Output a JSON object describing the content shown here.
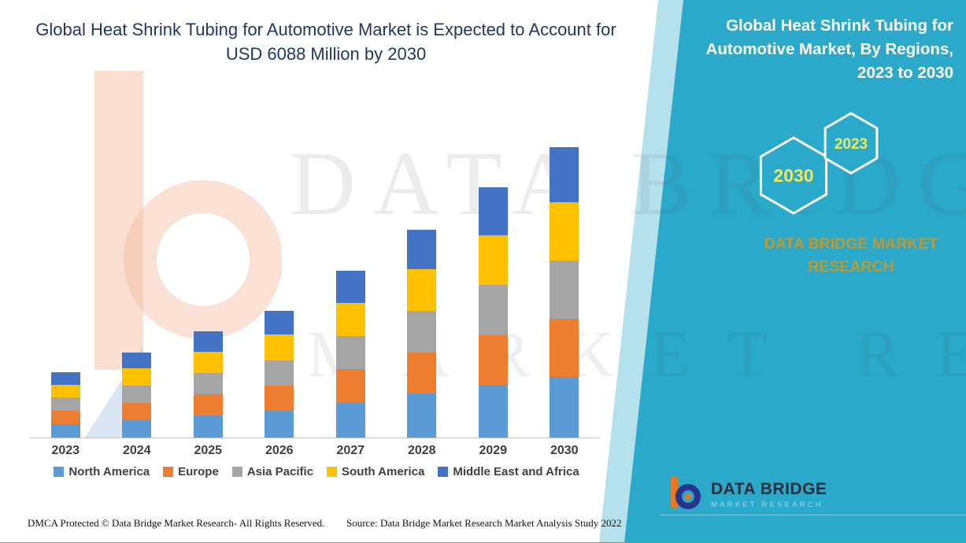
{
  "header": {
    "title_line1": "Global Heat Shrink Tubing for Automotive Market is Expected to Account for",
    "title_line2": "USD 6088 Million by 2030"
  },
  "side_panel": {
    "title": "Global Heat Shrink Tubing for Automotive Market, By Regions, 2023 to 2030",
    "badge_back": "2030",
    "badge_front": "2023",
    "brand_name": "DATA BRIDGE MARKET RESEARCH",
    "logo_title": "DATA BRIDGE",
    "logo_subtitle": "MARKET RESEARCH",
    "panel_color": "#2AA9CA",
    "badge_text_color": "#F0E95B",
    "brand_text_color": "#BE9B32"
  },
  "watermark": {
    "line1": "DATA BRIDGE",
    "line2": "MARKET RESEARCH"
  },
  "chart_data": {
    "type": "bar",
    "stacked": true,
    "title": "Global Heat Shrink Tubing for Automotive Market is Expected to Account for USD 6088 Million by 2030",
    "categories": [
      "2023",
      "2024",
      "2025",
      "2026",
      "2027",
      "2028",
      "2029",
      "2030"
    ],
    "series": [
      {
        "name": "North America",
        "color": "#5B9BD5",
        "values": [
          288,
          376,
          466,
          559,
          733,
          916,
          1100,
          1278
        ]
      },
      {
        "name": "Europe",
        "color": "#ED7D31",
        "values": [
          274,
          358,
          444,
          532,
          698,
          872,
          1048,
          1218
        ]
      },
      {
        "name": "Asia Pacific",
        "color": "#A5A5A5",
        "values": [
          274,
          358,
          444,
          532,
          698,
          872,
          1048,
          1218
        ]
      },
      {
        "name": "South America",
        "color": "#FFC000",
        "values": [
          274,
          358,
          444,
          532,
          698,
          872,
          1048,
          1218
        ]
      },
      {
        "name": "Middle East and Africa",
        "color": "#4472C4",
        "values": [
          260,
          340,
          422,
          505,
          663,
          828,
          996,
          1156
        ]
      }
    ],
    "totals_estimated": [
      1370,
      1790,
      2220,
      2660,
      3490,
      4360,
      5240,
      6088
    ],
    "axis_max": 6200,
    "gridlines": false,
    "legend_position": "bottom"
  },
  "footer": {
    "left_text": "DMCA Protected © Data Bridge Market Research- All Rights Reserved.",
    "source_text": "Source: Data Bridge Market Research Market Analysis Study 2022"
  }
}
